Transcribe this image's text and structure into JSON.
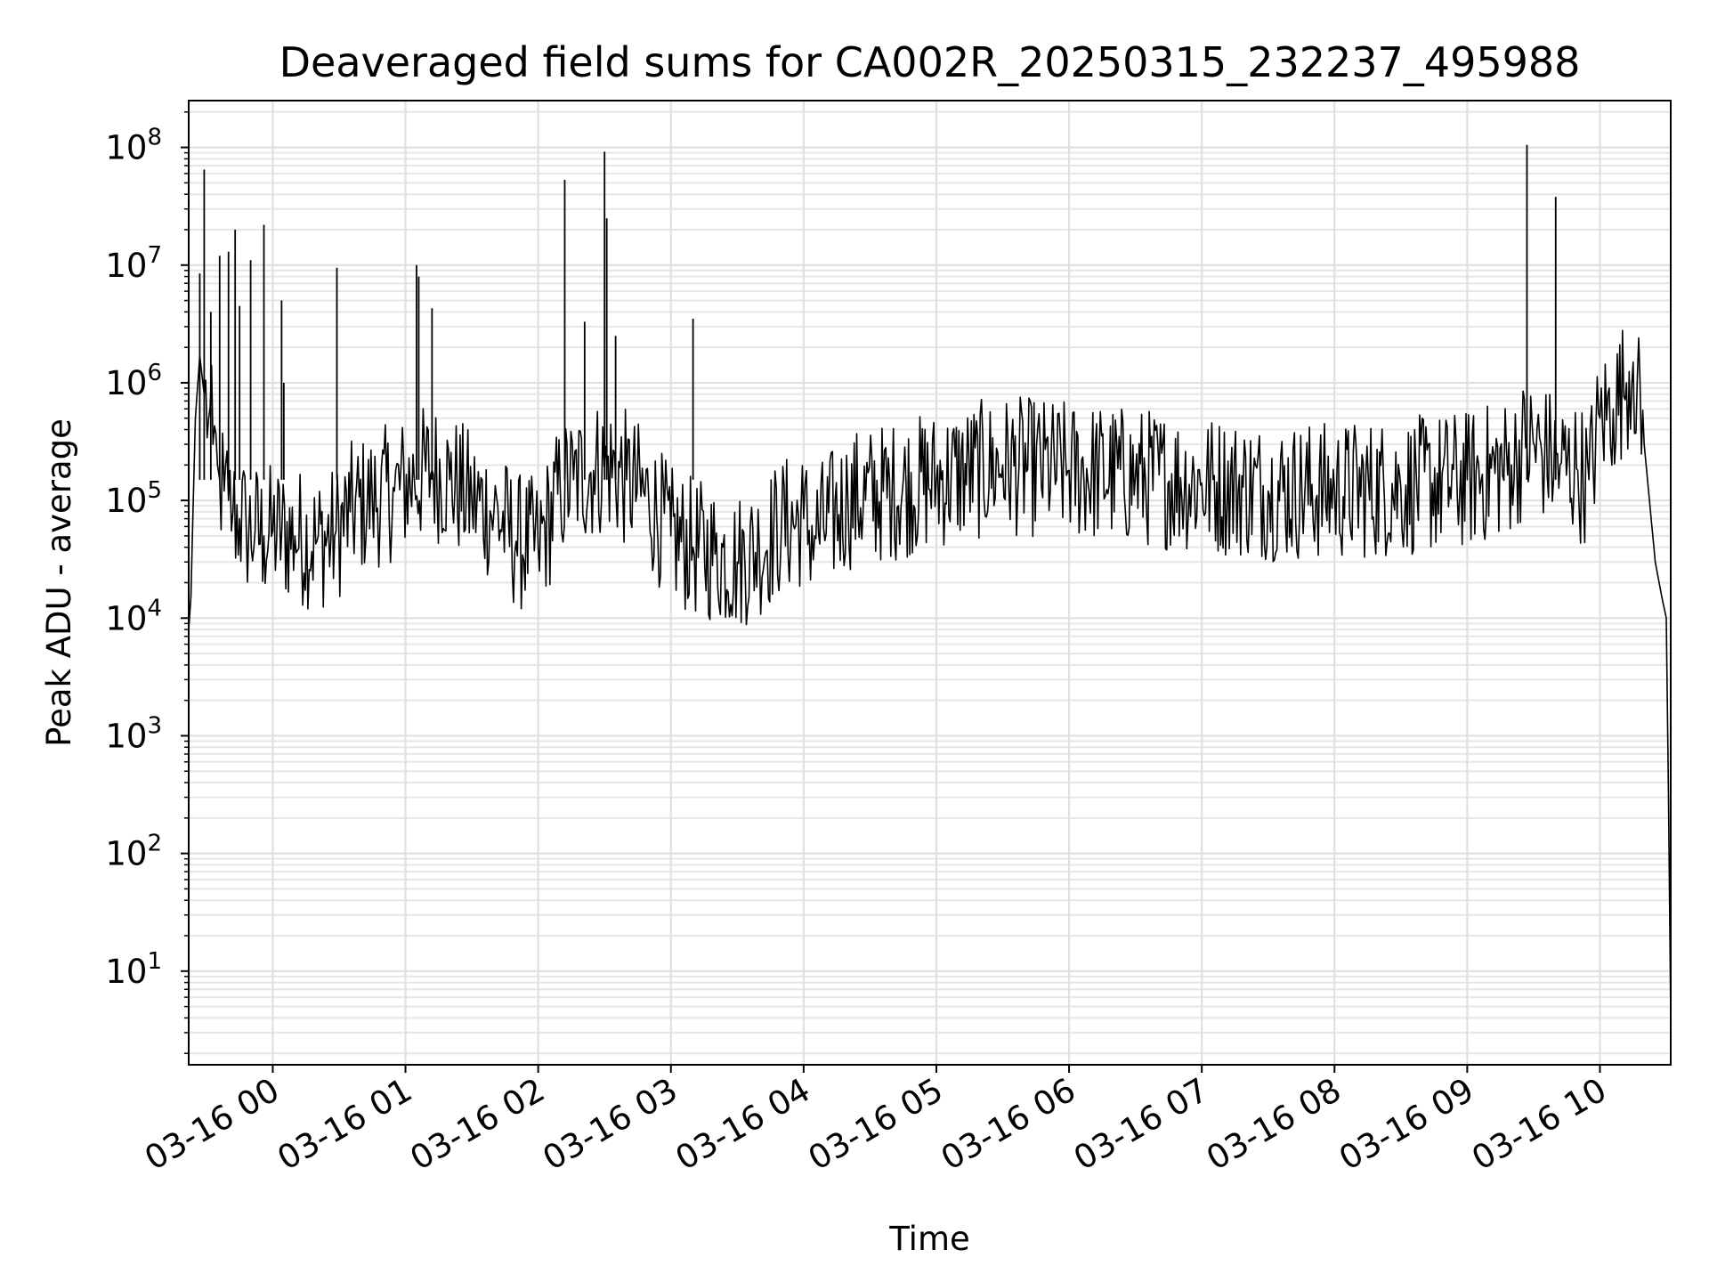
{
  "chart_data": {
    "type": "line",
    "title": "Deaveraged field sums for CA002R_20250315_232237_495988",
    "xlabel": "Time",
    "ylabel": "Peak ADU - average",
    "yscale": "log",
    "ylim": [
      1.6,
      250000000
    ],
    "xlim": [
      "2025-03-15 23:22",
      "2025-03-16 10:32"
    ],
    "grid": "on (major and minor)",
    "x_tick_labels": [
      "03-16 00",
      "03-16 01",
      "03-16 02",
      "03-16 03",
      "03-16 04",
      "03-16 05",
      "03-16 06",
      "03-16 07",
      "03-16 08",
      "03-16 09",
      "03-16 10"
    ],
    "x_tick_times": [
      "2025-03-16 00:00",
      "2025-03-16 01:00",
      "2025-03-16 02:00",
      "2025-03-16 03:00",
      "2025-03-16 04:00",
      "2025-03-16 05:00",
      "2025-03-16 06:00",
      "2025-03-16 07:00",
      "2025-03-16 08:00",
      "2025-03-16 09:00",
      "2025-03-16 10:00"
    ],
    "y_tick_labels": [
      {
        "base": "10",
        "exp": "1",
        "value": 10
      },
      {
        "base": "10",
        "exp": "2",
        "value": 100
      },
      {
        "base": "10",
        "exp": "3",
        "value": 1000
      },
      {
        "base": "10",
        "exp": "4",
        "value": 10000
      },
      {
        "base": "10",
        "exp": "5",
        "value": 100000
      },
      {
        "base": "10",
        "exp": "6",
        "value": 1000000
      },
      {
        "base": "10",
        "exp": "7",
        "value": 10000000
      },
      {
        "base": "10",
        "exp": "8",
        "value": 100000000
      }
    ],
    "series": [
      {
        "color": "#000000",
        "t": [
          "2025-03-15 23:22",
          "2025-03-15 23:23",
          "2025-03-15 23:25",
          "2025-03-15 23:27",
          "2025-03-15 23:29",
          "2025-03-15 23:31",
          "2025-03-15 23:33",
          "2025-03-15 23:35",
          "2025-03-15 23:36",
          "2025-03-15 23:38",
          "2025-03-15 23:40",
          "2025-03-15 23:42",
          "2025-03-15 23:45",
          "2025-03-15 23:48",
          "2025-03-15 23:52",
          "2025-03-15 23:56",
          "2025-03-16 00:00",
          "2025-03-16 00:10",
          "2025-03-16 00:20",
          "2025-03-16 00:28",
          "2025-03-16 00:35",
          "2025-03-16 00:45",
          "2025-03-16 00:55",
          "2025-03-16 01:04",
          "2025-03-16 01:12",
          "2025-03-16 01:20",
          "2025-03-16 01:30",
          "2025-03-16 01:40",
          "2025-03-16 01:50",
          "2025-03-16 02:00",
          "2025-03-16 02:10",
          "2025-03-16 02:16",
          "2025-03-16 02:25",
          "2025-03-16 02:31",
          "2025-03-16 02:40",
          "2025-03-16 02:50",
          "2025-03-16 03:00",
          "2025-03-16 03:10",
          "2025-03-16 03:20",
          "2025-03-16 03:30",
          "2025-03-16 03:40",
          "2025-03-16 03:50",
          "2025-03-16 04:00",
          "2025-03-16 04:05",
          "2025-03-16 04:20",
          "2025-03-16 04:40",
          "2025-03-16 05:00",
          "2025-03-16 05:30",
          "2025-03-16 06:00",
          "2025-03-16 06:30",
          "2025-03-16 07:00",
          "2025-03-16 07:30",
          "2025-03-16 08:00",
          "2025-03-16 08:30",
          "2025-03-16 09:00",
          "2025-03-16 09:20",
          "2025-03-16 09:27",
          "2025-03-16 09:35",
          "2025-03-16 09:42",
          "2025-03-16 09:50",
          "2025-03-16 09:55",
          "2025-03-16 10:00",
          "2025-03-16 10:06",
          "2025-03-16 10:12",
          "2025-03-16 10:15",
          "2025-03-16 10:20",
          "2025-03-16 10:25",
          "2025-03-16 10:28",
          "2025-03-16 10:30",
          "2025-03-16 10:31",
          "2025-03-16 10:32"
        ],
        "y": [
          8000,
          15000,
          500000,
          1700000,
          800000,
          500000,
          300000,
          200000,
          150000,
          120000,
          100000,
          80000,
          70000,
          60000,
          55000,
          50000,
          55000,
          50000,
          45000,
          50000,
          80000,
          100000,
          120000,
          150000,
          180000,
          150000,
          100000,
          80000,
          45000,
          40000,
          120000,
          150000,
          180000,
          200000,
          150000,
          100000,
          50000,
          40000,
          35000,
          30000,
          40000,
          60000,
          70000,
          50000,
          100000,
          120000,
          150000,
          200000,
          180000,
          160000,
          140000,
          120000,
          120000,
          130000,
          150000,
          200000,
          300000,
          250000,
          200000,
          180000,
          150000,
          500000,
          600000,
          1000000,
          1500000,
          300000,
          30000,
          15000,
          10000,
          300,
          4
        ]
      },
      {
        "name": "spikes",
        "t": [
          "2025-03-15 23:27",
          "2025-03-15 23:29",
          "2025-03-15 23:32",
          "2025-03-15 23:36",
          "2025-03-15 23:40",
          "2025-03-15 23:43",
          "2025-03-15 23:45",
          "2025-03-15 23:50",
          "2025-03-15 23:56",
          "2025-03-16 00:04",
          "2025-03-16 00:05",
          "2025-03-16 00:29",
          "2025-03-16 01:05",
          "2025-03-16 01:06",
          "2025-03-16 01:12",
          "2025-03-16 02:12",
          "2025-03-16 02:21",
          "2025-03-16 02:30",
          "2025-03-16 02:31",
          "2025-03-16 02:35",
          "2025-03-16 03:10",
          "2025-03-16 09:27",
          "2025-03-16 09:40"
        ],
        "y": [
          8500000,
          65000000,
          4000000,
          12000000,
          13000000,
          20000000,
          4500000,
          11000000,
          22000000,
          5000000,
          1000000,
          9500000,
          10000000,
          8000000,
          4300000,
          53000000,
          3300000,
          92000000,
          25000000,
          2500000,
          3500000,
          105000000,
          38000000
        ]
      }
    ]
  }
}
